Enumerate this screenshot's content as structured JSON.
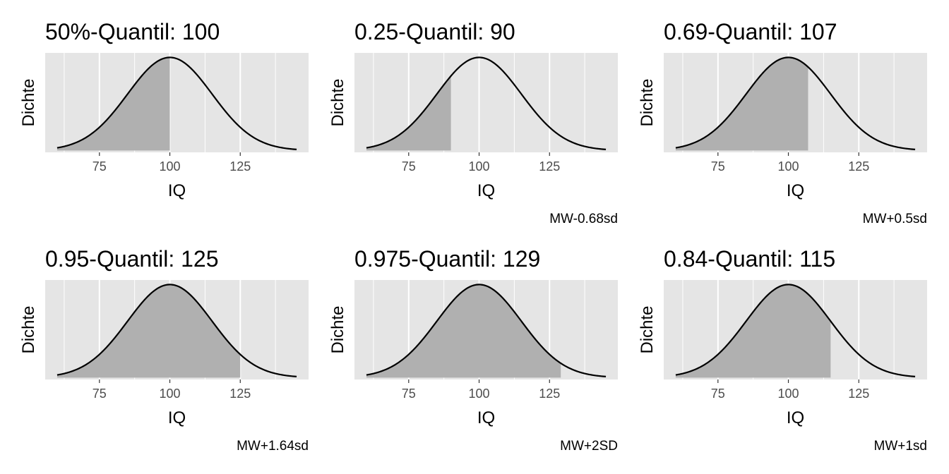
{
  "style": {
    "panel_background": "#e5e5e5",
    "grid_color": "#ffffff",
    "fill_color": "#b0b0b0",
    "curve_color": "#000000",
    "tick_text_color": "#4d4d4d"
  },
  "chart_data": [
    {
      "type": "area",
      "title": "50%-Quantil: 100",
      "xlabel": "IQ",
      "ylabel": "Dichte",
      "caption": "",
      "x_ticks": [
        75,
        100,
        125
      ],
      "xlim": [
        60,
        145
      ],
      "distribution": {
        "mean": 100,
        "sd": 15
      },
      "shaded_upper": 100
    },
    {
      "type": "area",
      "title": "0.25-Quantil: 90",
      "xlabel": "IQ",
      "ylabel": "Dichte",
      "caption": "MW-0.68sd",
      "x_ticks": [
        75,
        100,
        125
      ],
      "xlim": [
        60,
        145
      ],
      "distribution": {
        "mean": 100,
        "sd": 15
      },
      "shaded_upper": 90
    },
    {
      "type": "area",
      "title": "0.69-Quantil: 107",
      "xlabel": "IQ",
      "ylabel": "Dichte",
      "caption": "MW+0.5sd",
      "x_ticks": [
        75,
        100,
        125
      ],
      "xlim": [
        60,
        145
      ],
      "distribution": {
        "mean": 100,
        "sd": 15
      },
      "shaded_upper": 107
    },
    {
      "type": "area",
      "title": "0.95-Quantil: 125",
      "xlabel": "IQ",
      "ylabel": "Dichte",
      "caption": "MW+1.64sd",
      "x_ticks": [
        75,
        100,
        125
      ],
      "xlim": [
        60,
        145
      ],
      "distribution": {
        "mean": 100,
        "sd": 15
      },
      "shaded_upper": 125
    },
    {
      "type": "area",
      "title": "0.975-Quantil: 129",
      "xlabel": "IQ",
      "ylabel": "Dichte",
      "caption": "MW+2SD",
      "x_ticks": [
        75,
        100,
        125
      ],
      "xlim": [
        60,
        145
      ],
      "distribution": {
        "mean": 100,
        "sd": 15
      },
      "shaded_upper": 129
    },
    {
      "type": "area",
      "title": "0.84-Quantil: 115",
      "xlabel": "IQ",
      "ylabel": "Dichte",
      "caption": "MW+1sd",
      "x_ticks": [
        75,
        100,
        125
      ],
      "xlim": [
        60,
        145
      ],
      "distribution": {
        "mean": 100,
        "sd": 15
      },
      "shaded_upper": 115
    }
  ]
}
